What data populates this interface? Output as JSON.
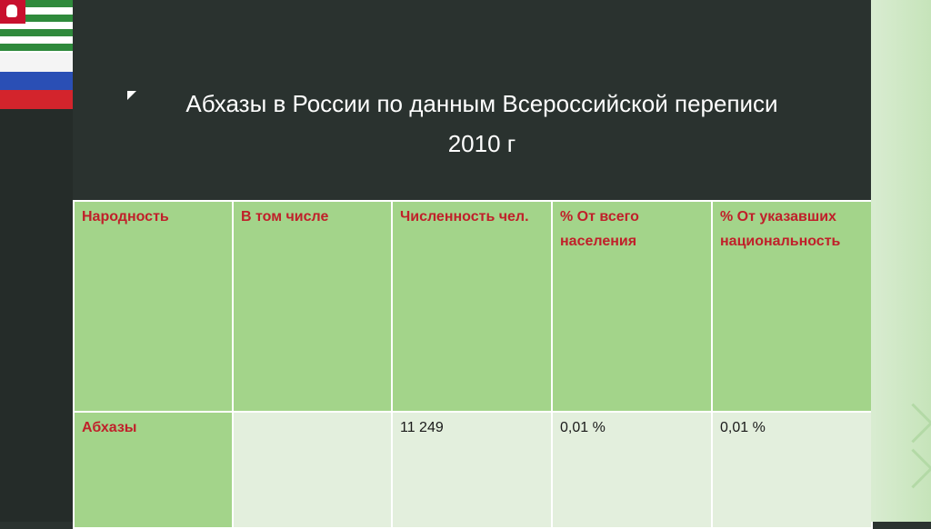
{
  "title": {
    "line1": "Абхазы в России по данным Всероссийской переписи",
    "line2": "2010 г"
  },
  "table": {
    "headers": [
      "Народность",
      "В том числе",
      "Численность чел.",
      "% От всего населения",
      "% От указавших национальность"
    ],
    "rows": [
      [
        "Абхазы",
        "",
        "11 249",
        "0,01 %",
        "0,01 %"
      ]
    ]
  },
  "colors": {
    "background": "#2b3330",
    "header_cell": "#a3d48a",
    "body_cell": "#e3efdd",
    "header_text": "#c0202a"
  },
  "icons": [
    "abkhazia-flag-icon",
    "russia-flag-icon",
    "bullet-arrow-icon",
    "chevron-right-icon"
  ]
}
